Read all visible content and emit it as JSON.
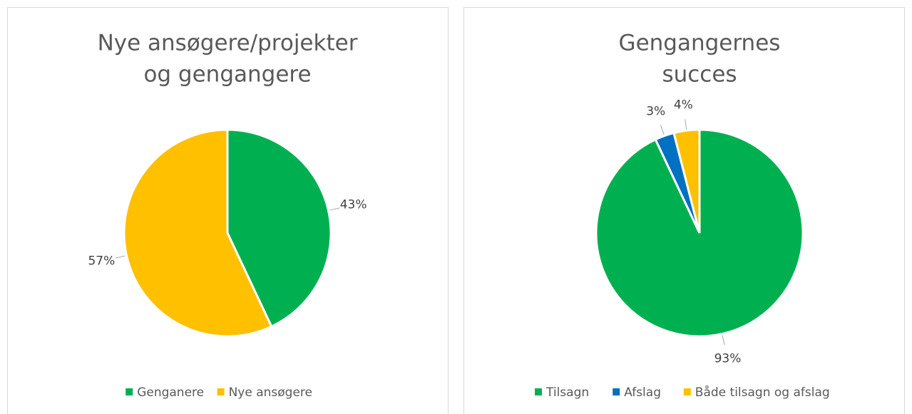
{
  "chart_data": [
    {
      "type": "pie",
      "title": [
        "Nye ansøgere/projekter",
        "og gengangere"
      ],
      "categories": [
        "Genganere",
        "Nye ansøgere"
      ],
      "values": [
        43,
        57
      ],
      "value_labels": [
        "43%",
        "57%"
      ],
      "colors": [
        "#00b050",
        "#ffc000"
      ],
      "legend": "bottom"
    },
    {
      "type": "pie",
      "title": [
        "Gengangernes",
        "succes"
      ],
      "categories": [
        "Tilsagn",
        "Afslag",
        "Både tilsagn og afslag"
      ],
      "values": [
        93,
        3,
        4
      ],
      "value_labels": [
        "93%",
        "3%",
        "4%"
      ],
      "colors": [
        "#00b050",
        "#0070c0",
        "#ffc000"
      ],
      "legend": "bottom"
    }
  ]
}
